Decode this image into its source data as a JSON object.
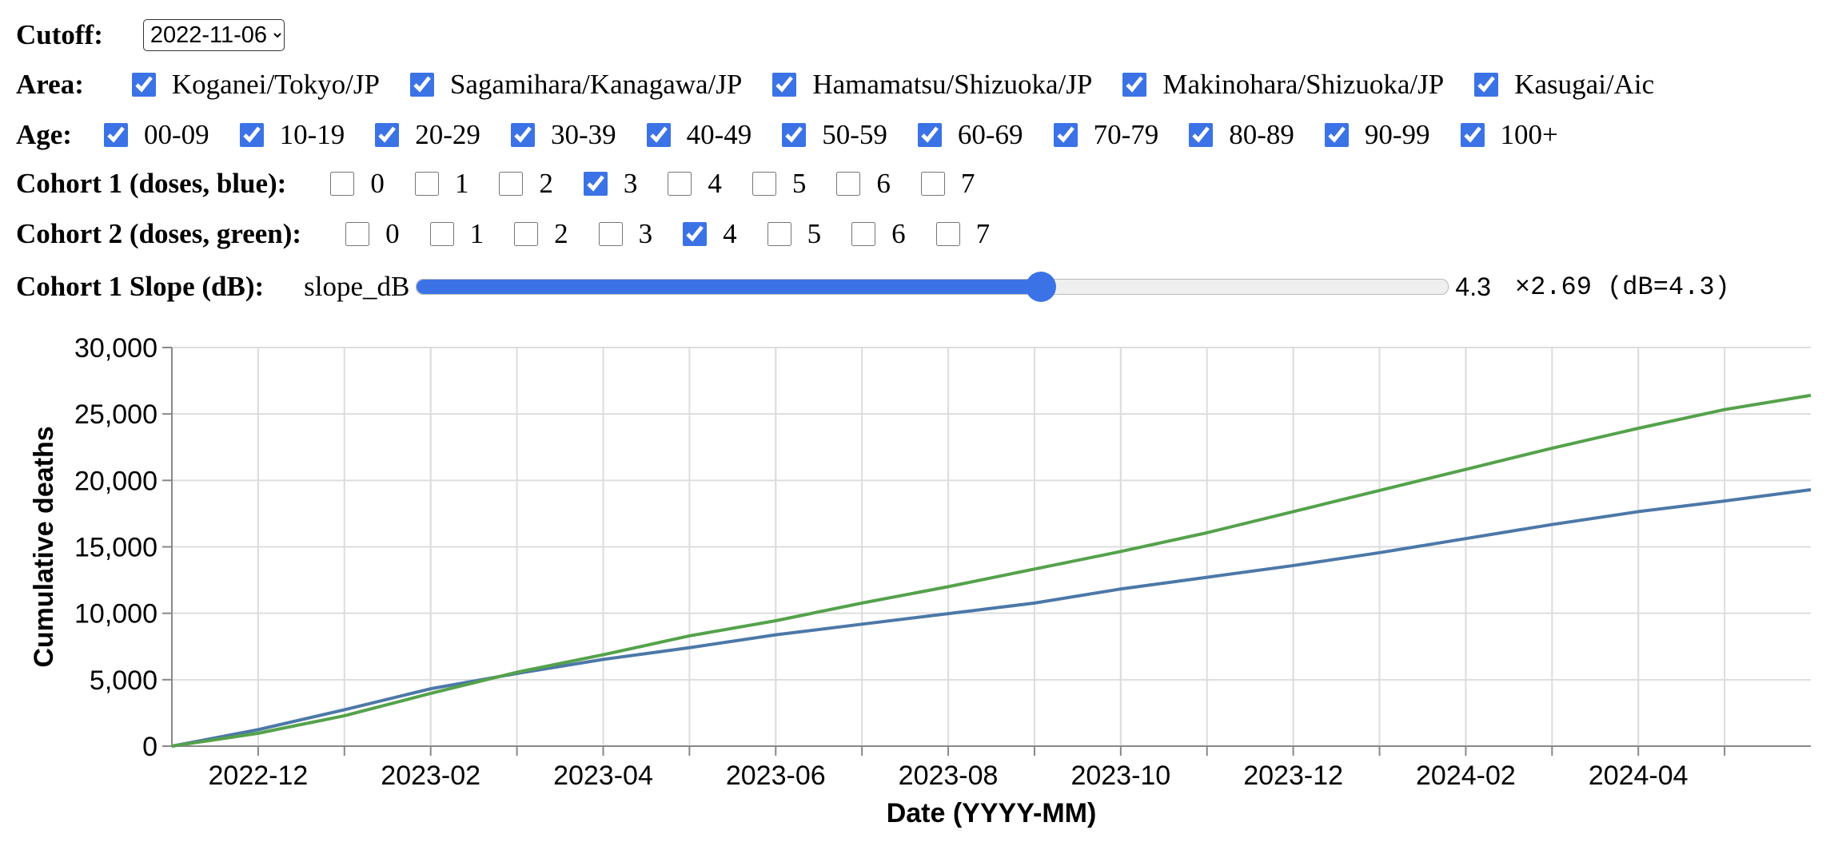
{
  "controls": {
    "cutoff": {
      "label": "Cutoff:",
      "value": "2022-11-06"
    },
    "area": {
      "label": "Area:",
      "options": [
        {
          "label": "Koganei/Tokyo/JP",
          "checked": true
        },
        {
          "label": "Sagamihara/Kanagawa/JP",
          "checked": true
        },
        {
          "label": "Hamamatsu/Shizuoka/JP",
          "checked": true
        },
        {
          "label": "Makinohara/Shizuoka/JP",
          "checked": true
        },
        {
          "label": "Kasugai/Aic",
          "checked": true
        }
      ]
    },
    "age": {
      "label": "Age:",
      "options": [
        {
          "label": "00-09",
          "checked": true
        },
        {
          "label": "10-19",
          "checked": true
        },
        {
          "label": "20-29",
          "checked": true
        },
        {
          "label": "30-39",
          "checked": true
        },
        {
          "label": "40-49",
          "checked": true
        },
        {
          "label": "50-59",
          "checked": true
        },
        {
          "label": "60-69",
          "checked": true
        },
        {
          "label": "70-79",
          "checked": true
        },
        {
          "label": "80-89",
          "checked": true
        },
        {
          "label": "90-99",
          "checked": true
        },
        {
          "label": "100+",
          "checked": true
        }
      ]
    },
    "cohort1": {
      "label": "Cohort 1 (doses, blue):",
      "options": [
        {
          "label": "0",
          "checked": false
        },
        {
          "label": "1",
          "checked": false
        },
        {
          "label": "2",
          "checked": false
        },
        {
          "label": "3",
          "checked": true
        },
        {
          "label": "4",
          "checked": false
        },
        {
          "label": "5",
          "checked": false
        },
        {
          "label": "6",
          "checked": false
        },
        {
          "label": "7",
          "checked": false
        }
      ]
    },
    "cohort2": {
      "label": "Cohort 2 (doses, green):",
      "options": [
        {
          "label": "0",
          "checked": false
        },
        {
          "label": "1",
          "checked": false
        },
        {
          "label": "2",
          "checked": false
        },
        {
          "label": "3",
          "checked": false
        },
        {
          "label": "4",
          "checked": true
        },
        {
          "label": "5",
          "checked": false
        },
        {
          "label": "6",
          "checked": false
        },
        {
          "label": "7",
          "checked": false
        }
      ]
    },
    "slope": {
      "label": "Cohort 1 Slope (dB):",
      "name": "slope_dB",
      "value": 4.3,
      "readout": "×2.69 (dB=4.3)"
    }
  },
  "chart_data": {
    "type": "line",
    "x_label": "Date (YYYY-MM)",
    "y_label": "Cumulative deaths",
    "x": [
      "2022-11",
      "2022-12",
      "2023-01",
      "2023-02",
      "2023-03",
      "2023-04",
      "2023-05",
      "2023-06",
      "2023-07",
      "2023-08",
      "2023-09",
      "2023-10",
      "2023-11",
      "2023-12",
      "2024-01",
      "2024-02",
      "2024-03",
      "2024-04",
      "2024-05",
      "2024-06"
    ],
    "series": [
      {
        "name": "Cohort 1",
        "color": "#4c78a8",
        "values": [
          0,
          1240,
          2740,
          4320,
          5470,
          6530,
          7410,
          8380,
          9180,
          9970,
          10770,
          11830,
          12710,
          13590,
          14560,
          15620,
          16680,
          17650,
          18450,
          19300
        ]
      },
      {
        "name": "Cohort 2",
        "color": "#54a24b",
        "values": [
          0,
          970,
          2290,
          3970,
          5560,
          6880,
          8300,
          9440,
          10770,
          12000,
          13330,
          14650,
          16060,
          17650,
          19240,
          20830,
          22420,
          23920,
          25330,
          26400
        ]
      }
    ],
    "xlim": [
      "2022-11",
      "2024-06"
    ],
    "xticks": [
      "2022-12",
      "2023-02",
      "2023-04",
      "2023-06",
      "2023-08",
      "2023-10",
      "2023-12",
      "2024-02",
      "2024-04"
    ],
    "ylim": [
      0,
      30000
    ],
    "yticks": [
      0,
      {
        "value": 5000,
        "label": "5,000"
      },
      {
        "value": 10000,
        "label": "10,000"
      },
      {
        "value": 15000,
        "label": "15,000"
      },
      {
        "value": 20000,
        "label": "20,000"
      },
      {
        "value": 25000,
        "label": "25,000"
      },
      {
        "value": 30000,
        "label": "30,000"
      }
    ],
    "grid": true
  }
}
